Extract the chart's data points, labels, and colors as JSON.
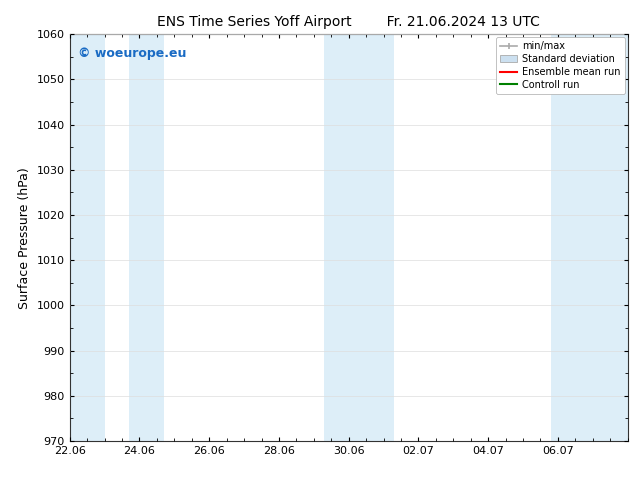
{
  "title_left": "ENS Time Series Yoff Airport",
  "title_right": "Fr. 21.06.2024 13 UTC",
  "ylabel": "Surface Pressure (hPa)",
  "ylim": [
    970,
    1060
  ],
  "yticks": [
    970,
    980,
    990,
    1000,
    1010,
    1020,
    1030,
    1040,
    1050,
    1060
  ],
  "xlim": [
    0,
    16
  ],
  "xtick_labels": [
    "22.06",
    "24.06",
    "26.06",
    "28.06",
    "30.06",
    "02.07",
    "04.07",
    "06.07"
  ],
  "xtick_positions": [
    0,
    2,
    4,
    6,
    8,
    10,
    12,
    14
  ],
  "shaded_bands": [
    {
      "x_start": 0.0,
      "x_end": 1.0,
      "color": "#ddeef8"
    },
    {
      "x_start": 1.7,
      "x_end": 2.7,
      "color": "#ddeef8"
    },
    {
      "x_start": 7.3,
      "x_end": 9.3,
      "color": "#ddeef8"
    },
    {
      "x_start": 13.8,
      "x_end": 16.0,
      "color": "#ddeef8"
    }
  ],
  "watermark_text": "© woeurope.eu",
  "watermark_color": "#1a6bc4",
  "legend_items": [
    {
      "label": "min/max",
      "color": "#aaaaaa",
      "style": "errorbar"
    },
    {
      "label": "Standard deviation",
      "color": "#cce0f0",
      "style": "box"
    },
    {
      "label": "Ensemble mean run",
      "color": "red",
      "style": "line"
    },
    {
      "label": "Controll run",
      "color": "green",
      "style": "line"
    }
  ],
  "bg_color": "#ffffff",
  "plot_bg_color": "#ffffff",
  "grid_color": "#dddddd",
  "title_fontsize": 10,
  "axis_label_fontsize": 9,
  "tick_fontsize": 8,
  "legend_fontsize": 7,
  "watermark_fontsize": 9
}
